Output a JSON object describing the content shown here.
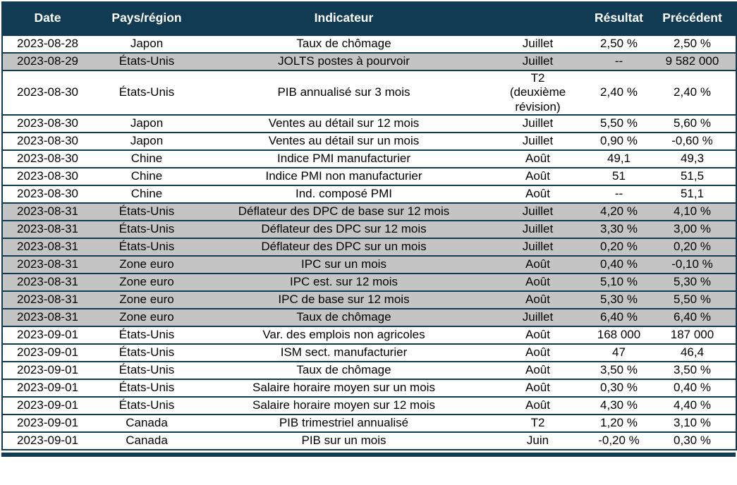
{
  "colors": {
    "header_bg": "#113B52",
    "border": "#113B52",
    "row_shaded": "#C4C4C4",
    "row_plain": "#FFFFFF",
    "header_text": "#FFFFFF",
    "body_text": "#000000"
  },
  "table": {
    "columns": [
      {
        "label": "Date"
      },
      {
        "label": "Pays/région"
      },
      {
        "label": "Indicateur"
      },
      {
        "label": ""
      },
      {
        "label": "Résultat"
      },
      {
        "label": "Précédent"
      }
    ],
    "row_fields": [
      "date",
      "region",
      "indicator",
      "period",
      "result",
      "previous"
    ],
    "rows": [
      {
        "date": "2023-08-28",
        "region": "Japon",
        "indicator": "Taux de chômage",
        "period": "Juillet",
        "result": "2,50 %",
        "previous": "2,50 %",
        "shaded": false
      },
      {
        "date": "2023-08-29",
        "region": "États-Unis",
        "indicator": "JOLTS postes à pourvoir",
        "period": "Juillet",
        "result": "--",
        "previous": "9 582 000",
        "shaded": true
      },
      {
        "date": "2023-08-30",
        "region": "États-Unis",
        "indicator": "PIB annualisé sur 3 mois",
        "period": "T2\n(deuxième\nrévision)",
        "result": "2,40 %",
        "previous": "2,40 %",
        "shaded": false
      },
      {
        "date": "2023-08-30",
        "region": "Japon",
        "indicator": "Ventes au détail sur 12 mois",
        "period": "Juillet",
        "result": "5,50 %",
        "previous": "5,60 %",
        "shaded": false
      },
      {
        "date": "2023-08-30",
        "region": "Japon",
        "indicator": "Ventes au détail sur un mois",
        "period": "Juillet",
        "result": "0,90 %",
        "previous": "-0,60 %",
        "shaded": false
      },
      {
        "date": "2023-08-30",
        "region": "Chine",
        "indicator": "Indice PMI manufacturier",
        "period": "Août",
        "result": "49,1",
        "previous": "49,3",
        "shaded": false
      },
      {
        "date": "2023-08-30",
        "region": "Chine",
        "indicator": "Indice PMI non manufacturier",
        "period": "Août",
        "result": "51",
        "previous": "51,5",
        "shaded": false
      },
      {
        "date": "2023-08-30",
        "region": "Chine",
        "indicator": "Ind. composé PMI",
        "period": "Août",
        "result": "--",
        "previous": "51,1",
        "shaded": false
      },
      {
        "date": "2023-08-31",
        "region": "États-Unis",
        "indicator": "Déflateur des DPC de base sur 12 mois",
        "period": "Juillet",
        "result": "4,20 %",
        "previous": "4,10 %",
        "shaded": true
      },
      {
        "date": "2023-08-31",
        "region": "États-Unis",
        "indicator": "Déflateur des DPC sur 12 mois",
        "period": "Juillet",
        "result": "3,30 %",
        "previous": "3,00 %",
        "shaded": true
      },
      {
        "date": "2023-08-31",
        "region": "États-Unis",
        "indicator": "Déflateur des DPC sur un mois",
        "period": "Juillet",
        "result": "0,20 %",
        "previous": "0,20 %",
        "shaded": true
      },
      {
        "date": "2023-08-31",
        "region": "Zone euro",
        "indicator": "IPC sur un mois",
        "period": "Août",
        "result": "0,40 %",
        "previous": "-0,10 %",
        "shaded": true
      },
      {
        "date": "2023-08-31",
        "region": "Zone euro",
        "indicator": "IPC est. sur 12 mois",
        "period": "Août",
        "result": "5,10 %",
        "previous": "5,30 %",
        "shaded": true
      },
      {
        "date": "2023-08-31",
        "region": "Zone euro",
        "indicator": "IPC de base sur 12 mois",
        "period": "Août",
        "result": "5,30 %",
        "previous": "5,50 %",
        "shaded": true
      },
      {
        "date": "2023-08-31",
        "region": "Zone euro",
        "indicator": "Taux de chômage",
        "period": "Juillet",
        "result": "6,40 %",
        "previous": "6,40 %",
        "shaded": true
      },
      {
        "date": "2023-09-01",
        "region": "États-Unis",
        "indicator": "Var. des emplois non agricoles",
        "period": "Août",
        "result": "168 000",
        "previous": "187 000",
        "shaded": false
      },
      {
        "date": "2023-09-01",
        "region": "États-Unis",
        "indicator": "ISM sect. manufacturier",
        "period": "Août",
        "result": "47",
        "previous": "46,4",
        "shaded": false
      },
      {
        "date": "2023-09-01",
        "region": "États-Unis",
        "indicator": "Taux de chômage",
        "period": "Août",
        "result": "3,50 %",
        "previous": "3,50 %",
        "shaded": false
      },
      {
        "date": "2023-09-01",
        "region": "États-Unis",
        "indicator": "Salaire horaire moyen sur un mois",
        "period": "Août",
        "result": "0,30 %",
        "previous": "0,40 %",
        "shaded": false
      },
      {
        "date": "2023-09-01",
        "region": "États-Unis",
        "indicator": "Salaire horaire moyen sur 12 mois",
        "period": "Août",
        "result": "4,30 %",
        "previous": "4,40 %",
        "shaded": false
      },
      {
        "date": "2023-09-01",
        "region": "Canada",
        "indicator": "PIB trimestriel annualisé",
        "period": "T2",
        "result": "1,20 %",
        "previous": "3,10 %",
        "shaded": false
      },
      {
        "date": "2023-09-01",
        "region": "Canada",
        "indicator": "PIB sur un mois",
        "period": "Juin",
        "result": "-0,20 %",
        "previous": "0,30 %",
        "shaded": false
      }
    ]
  }
}
